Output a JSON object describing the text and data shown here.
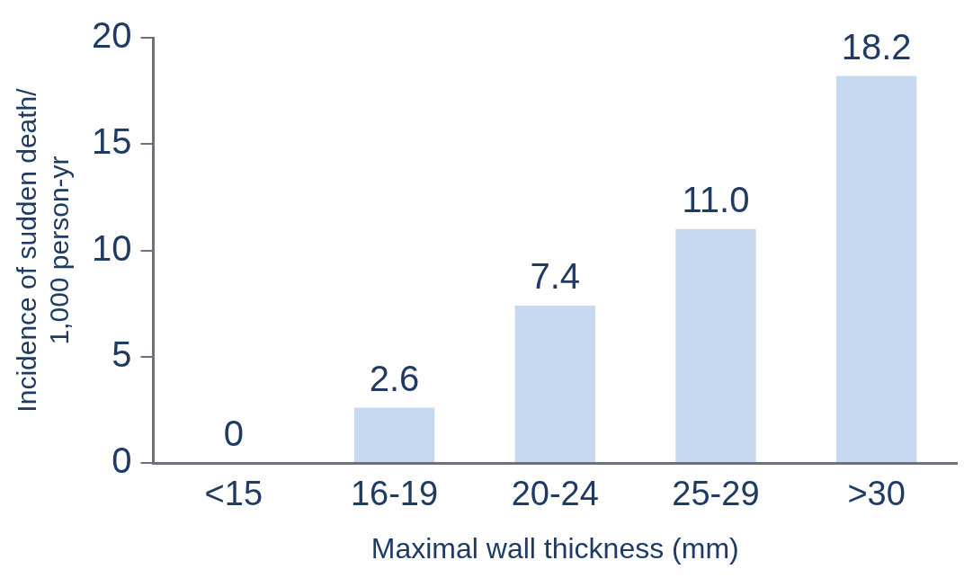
{
  "chart_data": {
    "type": "bar",
    "xlabel": "Maximal wall thickness (mm)",
    "ylabel": "Incidence of sudden death/\n1,000 person-yr",
    "categories": [
      "<15",
      "16-19",
      "20-24",
      "25-29",
      ">30"
    ],
    "values": [
      0,
      2.6,
      7.4,
      11.0,
      18.2
    ],
    "value_labels": [
      "0",
      "2.6",
      "7.4",
      "11.0",
      "18.2"
    ],
    "color": "#c6d9f0",
    "ylim": [
      0,
      20
    ],
    "yticks": [
      0,
      5,
      10,
      15,
      20
    ],
    "grid": false,
    "legend": false
  }
}
